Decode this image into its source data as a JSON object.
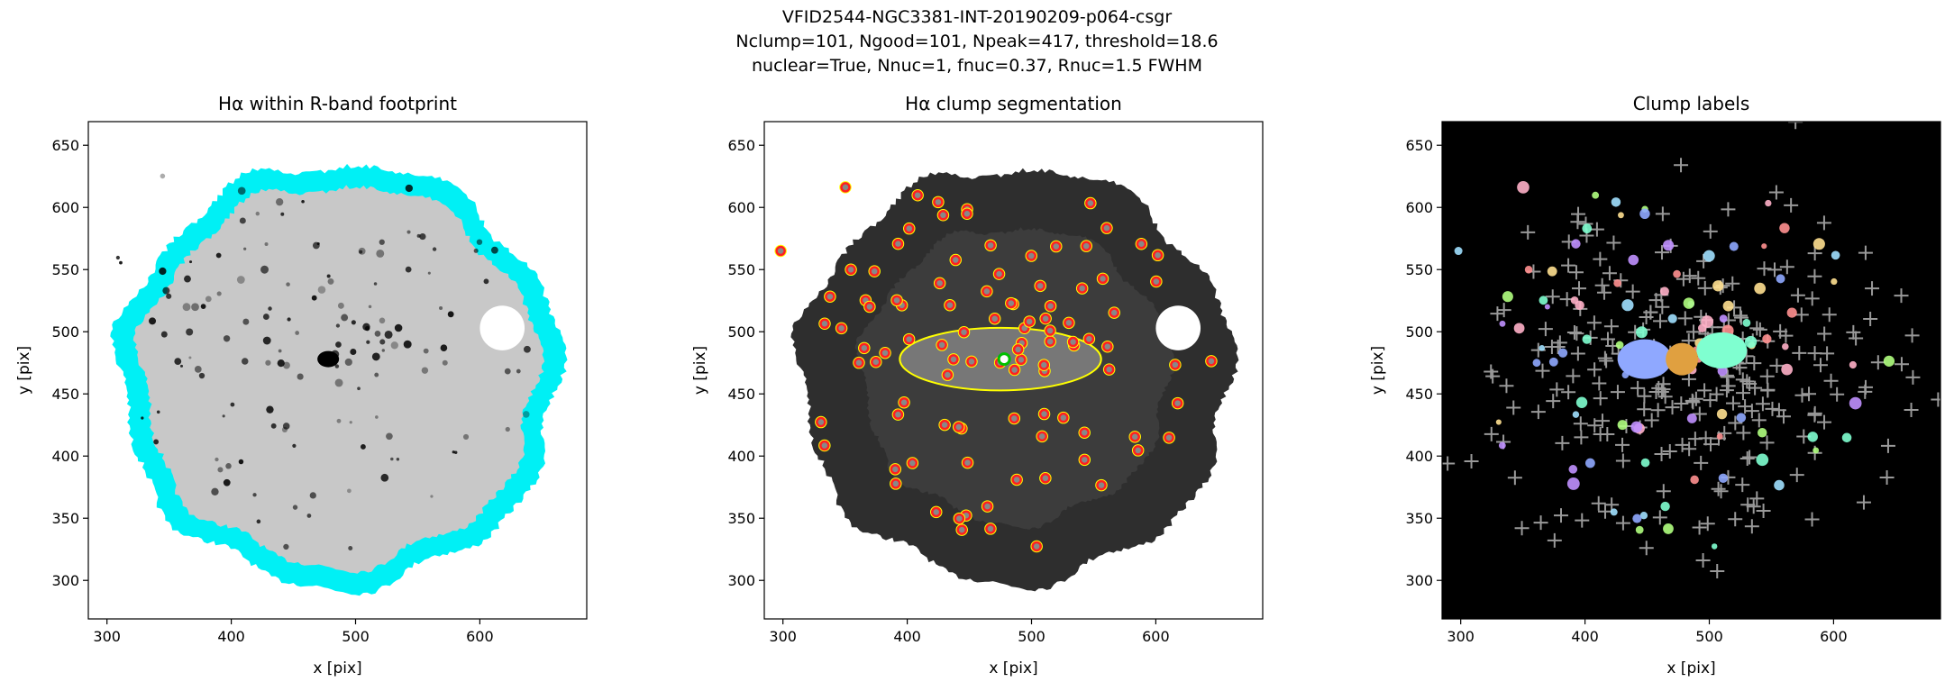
{
  "figure": {
    "title": [
      "VFID2544-NGC3381-INT-20190209-p064-csgr",
      "Nclump=101, Ngood=101, Npeak=417, threshold=18.6",
      "nuclear=True, Nnuc=1, fnuc=0.37, Rnuc=1.5 FWHM"
    ]
  },
  "chart_data": [
    {
      "type": "image",
      "title": "Hα within R-band footprint",
      "xlabel": "x [pix]",
      "ylabel": "y [pix]",
      "xlim": [
        285,
        686
      ],
      "ylim": [
        269,
        669
      ],
      "xticks": [
        300,
        400,
        500,
        600
      ],
      "yticks": [
        300,
        350,
        400,
        450,
        500,
        550,
        600,
        650
      ]
    },
    {
      "type": "image",
      "title": "Hα clump segmentation",
      "xlabel": "x [pix]",
      "ylabel": "y [pix]",
      "xlim": [
        285,
        686
      ],
      "ylim": [
        269,
        669
      ],
      "xticks": [
        300,
        400,
        500,
        600
      ],
      "yticks": [
        300,
        350,
        400,
        450,
        500,
        550,
        600,
        650
      ]
    },
    {
      "type": "image",
      "title": "Clump labels",
      "xlabel": "x [pix]",
      "ylabel": "y [pix]",
      "xlim": [
        285,
        686
      ],
      "ylim": [
        269,
        669
      ],
      "xticks": [
        300,
        400,
        500,
        600
      ],
      "yticks": [
        300,
        350,
        400,
        450,
        500,
        550,
        600,
        650
      ]
    }
  ]
}
